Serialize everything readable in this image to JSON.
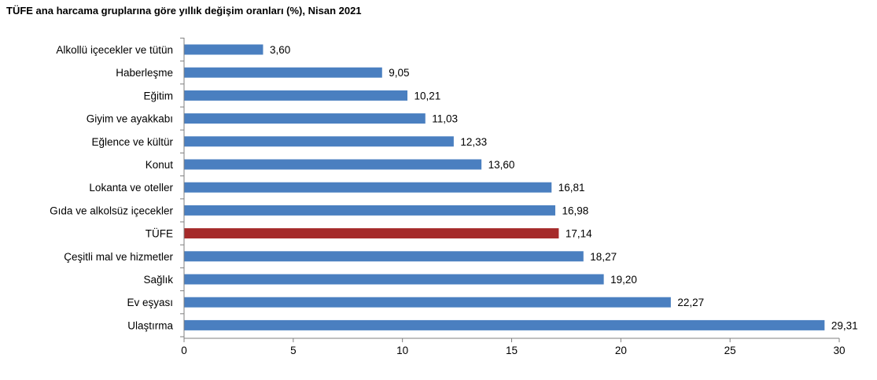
{
  "chart_data": {
    "type": "bar",
    "orientation": "horizontal",
    "title": "TÜFE ana harcama gruplarına göre yıllık değişim oranları (%), Nisan 2021",
    "categories": [
      "Alkollü içecekler ve tütün",
      "Haberleşme",
      "Eğitim",
      "Giyim ve ayakkabı",
      "Eğlence ve kültür",
      "Konut",
      "Lokanta ve oteller",
      "Gıda ve alkolsüz içecekler",
      "TÜFE",
      "Çeşitli mal ve hizmetler",
      "Sağlık",
      "Ev eşyası",
      "Ulaştırma"
    ],
    "values": [
      3.6,
      9.05,
      10.21,
      11.03,
      12.33,
      13.6,
      16.81,
      16.98,
      17.14,
      18.27,
      19.2,
      22.27,
      29.31
    ],
    "value_labels": [
      "3,60",
      "9,05",
      "10,21",
      "11,03",
      "12,33",
      "13,60",
      "16,81",
      "16,98",
      "17,14",
      "18,27",
      "19,20",
      "22,27",
      "29,31"
    ],
    "xlim": [
      0,
      30
    ],
    "xticks": [
      0,
      5,
      10,
      15,
      20,
      25,
      30
    ],
    "xtick_labels": [
      "0",
      "5",
      "10",
      "15",
      "20",
      "25",
      "30"
    ],
    "xlabel": "",
    "ylabel": "",
    "grid": false,
    "legend": false,
    "colors": {
      "bar": "#4a7fc0",
      "highlight_bar": "#a52a2a",
      "axis": "#7f7f7f"
    },
    "highlight_category": "TÜFE"
  }
}
